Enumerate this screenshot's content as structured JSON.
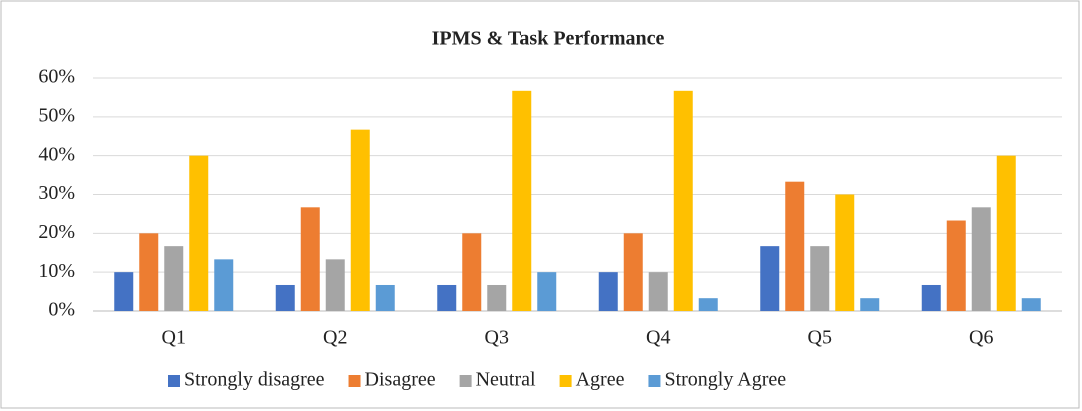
{
  "chart_data": {
    "type": "bar",
    "title": "IPMS & Task Performance",
    "categories": [
      "Q1",
      "Q2",
      "Q3",
      "Q4",
      "Q5",
      "Q6"
    ],
    "series": [
      {
        "name": "Strongly disagree",
        "color": "#4472c4",
        "values": [
          10,
          6.7,
          6.7,
          10,
          16.7,
          6.7
        ]
      },
      {
        "name": "Disagree",
        "color": "#ed7d31",
        "values": [
          20,
          26.7,
          20,
          20,
          33.3,
          23.3
        ]
      },
      {
        "name": "Neutral",
        "color": "#a5a5a5",
        "values": [
          16.7,
          13.3,
          6.7,
          10,
          16.7,
          26.7
        ]
      },
      {
        "name": "Agree",
        "color": "#ffc000",
        "values": [
          40,
          46.7,
          56.7,
          56.7,
          30,
          40
        ]
      },
      {
        "name": "Strongly Agree",
        "color": "#5b9bd5",
        "values": [
          13.3,
          6.7,
          10,
          3.3,
          3.3,
          3.3
        ]
      }
    ],
    "ylim": [
      0,
      60
    ],
    "yticks": [
      {
        "value": 0,
        "label": "0%"
      },
      {
        "value": 10,
        "label": "10%"
      },
      {
        "value": 20,
        "label": "20%"
      },
      {
        "value": 30,
        "label": "30%"
      },
      {
        "value": 40,
        "label": "40%"
      },
      {
        "value": 50,
        "label": "50%"
      },
      {
        "value": 60,
        "label": "60%"
      }
    ],
    "grid": true,
    "legend": "bottom"
  }
}
